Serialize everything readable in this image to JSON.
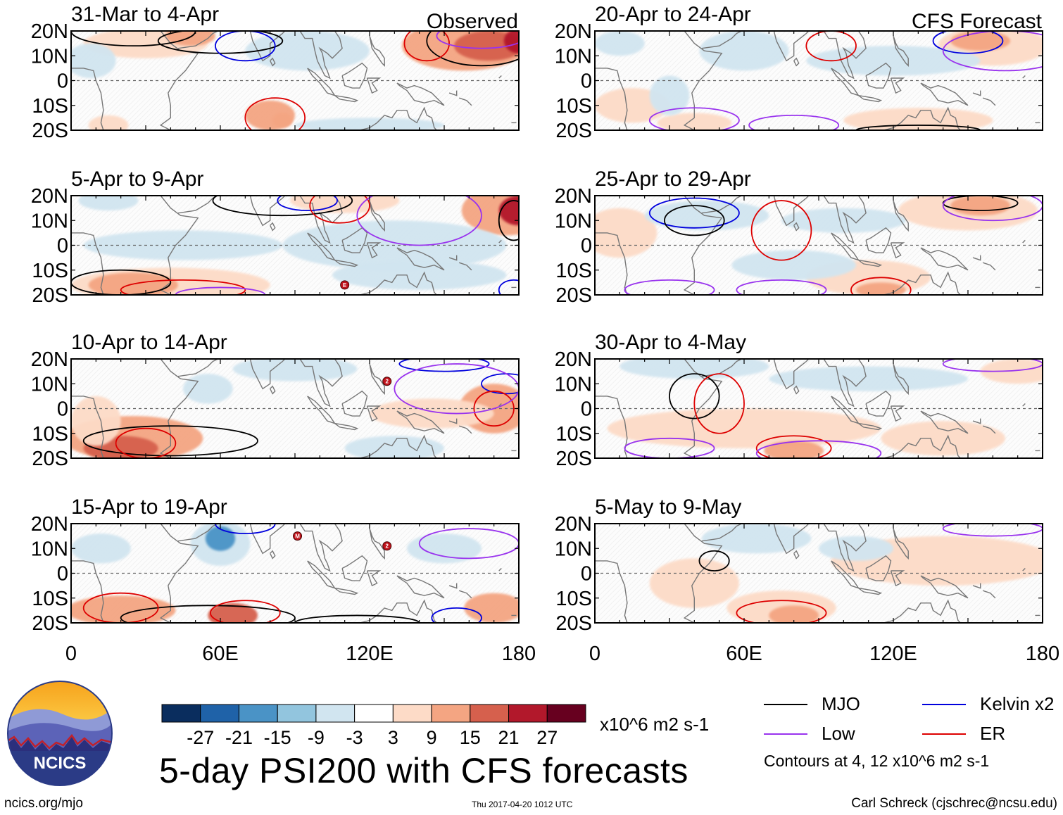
{
  "observed_label": "Observed",
  "forecast_label": "CFS Forecast",
  "lat_labels": [
    "20N",
    "10N",
    "0",
    "10S",
    "20S"
  ],
  "lon_labels": [
    "0",
    "60E",
    "120E",
    "180"
  ],
  "colors": {
    "MJO": "#000000",
    "Kelvin": "#0000dd",
    "Low": "#9933ee",
    "ER": "#dd0000",
    "land": "#777777"
  },
  "chart_data": {
    "type": "heatmap",
    "title": "5-day PSI200 with CFS forecasts",
    "units": "x10^6 m2 s-1",
    "xlim": [
      0,
      180
    ],
    "ylim": [
      -20,
      20
    ],
    "colorbar": {
      "ticks": [
        "-27",
        "-21",
        "-15",
        "-9",
        "-3",
        "3",
        "9",
        "15",
        "21",
        "27"
      ],
      "colors": [
        "#0a2d5e",
        "#1f62a8",
        "#4a93c6",
        "#92c5de",
        "#d1e5f0",
        "#ffffff",
        "#fddbc7",
        "#f4a582",
        "#d6604d",
        "#b2182b",
        "#67001f"
      ]
    },
    "panels": [
      {
        "id": "p1",
        "title": "31-Mar to 4-Apr",
        "kind": "observed",
        "blobs": [
          {
            "lon": 30,
            "lat": 15,
            "rx": 25,
            "ry": 6,
            "v": 8
          },
          {
            "lon": 48,
            "lat": 18,
            "rx": 10,
            "ry": 4,
            "v": 14
          },
          {
            "lon": 158,
            "lat": 14,
            "rx": 25,
            "ry": 10,
            "v": 9
          },
          {
            "lon": 168,
            "lat": 14,
            "rx": 14,
            "ry": 6,
            "v": 16
          },
          {
            "lon": 180,
            "lat": 16,
            "rx": 6,
            "ry": 5,
            "v": 22
          },
          {
            "lon": 80,
            "lat": -14,
            "rx": 10,
            "ry": 6,
            "v": 9
          },
          {
            "lon": 85,
            "lat": -16,
            "rx": 4,
            "ry": 3,
            "v": 14
          },
          {
            "lon": 15,
            "lat": -18,
            "rx": 8,
            "ry": 4,
            "v": 5
          },
          {
            "lon": 95,
            "lat": 12,
            "rx": 25,
            "ry": 8,
            "v": -4
          },
          {
            "lon": 8,
            "lat": 8,
            "rx": 10,
            "ry": 7,
            "v": -5
          },
          {
            "lon": 120,
            "lat": -18,
            "rx": 30,
            "ry": 3,
            "v": -4
          }
        ],
        "contours": [
          {
            "kind": "MJO",
            "lon": 25,
            "lat": 20,
            "rx": 25,
            "ry": 6
          },
          {
            "kind": "MJO",
            "lon": 60,
            "lat": 16,
            "rx": 25,
            "ry": 5
          },
          {
            "kind": "MJO",
            "lon": 165,
            "lat": 16,
            "rx": 22,
            "ry": 10
          },
          {
            "kind": "Kelvin",
            "lon": 70,
            "lat": 14,
            "rx": 12,
            "ry": 6
          },
          {
            "kind": "ER",
            "lon": 82,
            "lat": -15,
            "rx": 12,
            "ry": 8
          },
          {
            "kind": "ER",
            "lon": 143,
            "lat": 15,
            "rx": 9,
            "ry": 7
          },
          {
            "kind": "Low",
            "lon": 165,
            "lat": 18,
            "rx": 18,
            "ry": 5
          }
        ]
      },
      {
        "id": "p2",
        "title": "5-Apr to 9-Apr",
        "kind": "observed",
        "blobs": [
          {
            "lon": 40,
            "lat": -16,
            "rx": 40,
            "ry": 7,
            "v": 8
          },
          {
            "lon": 25,
            "lat": -16,
            "rx": 18,
            "ry": 5,
            "v": 14
          },
          {
            "lon": 175,
            "lat": 14,
            "rx": 18,
            "ry": 10,
            "v": 10
          },
          {
            "lon": 180,
            "lat": 14,
            "rx": 8,
            "ry": 6,
            "v": 22
          },
          {
            "lon": 110,
            "lat": 18,
            "rx": 22,
            "ry": 5,
            "v": 6
          },
          {
            "lon": 45,
            "lat": 0,
            "rx": 40,
            "ry": 6,
            "v": -5
          },
          {
            "lon": 130,
            "lat": 0,
            "rx": 45,
            "ry": 10,
            "v": -4
          },
          {
            "lon": 140,
            "lat": -12,
            "rx": 35,
            "ry": 6,
            "v": -4
          },
          {
            "lon": 15,
            "lat": 18,
            "rx": 12,
            "ry": 4,
            "v": -9
          }
        ],
        "contours": [
          {
            "kind": "MJO",
            "lon": 20,
            "lat": -15,
            "rx": 20,
            "ry": 5
          },
          {
            "kind": "MJO",
            "lon": 85,
            "lat": 18,
            "rx": 28,
            "ry": 6
          },
          {
            "kind": "MJO",
            "lon": 178,
            "lat": 10,
            "rx": 6,
            "ry": 8
          },
          {
            "kind": "Kelvin",
            "lon": 95,
            "lat": 18,
            "rx": 12,
            "ry": 4
          },
          {
            "kind": "Kelvin",
            "lon": 178,
            "lat": -18,
            "rx": 6,
            "ry": 4
          },
          {
            "kind": "ER",
            "lon": 108,
            "lat": 16,
            "rx": 12,
            "ry": 7
          },
          {
            "kind": "ER",
            "lon": 45,
            "lat": -18,
            "rx": 25,
            "ry": 4
          },
          {
            "kind": "Low",
            "lon": 140,
            "lat": 12,
            "rx": 25,
            "ry": 12
          },
          {
            "kind": "Low",
            "lon": 60,
            "lat": -20,
            "rx": 18,
            "ry": 3
          }
        ],
        "markers": [
          {
            "lon": 110,
            "lat": -16,
            "label": "E"
          }
        ]
      },
      {
        "id": "p3",
        "title": "10-Apr to 14-Apr",
        "kind": "observed",
        "blobs": [
          {
            "lon": 25,
            "lat": -12,
            "rx": 28,
            "ry": 9,
            "v": 9
          },
          {
            "lon": 20,
            "lat": -16,
            "rx": 15,
            "ry": 5,
            "v": 18
          },
          {
            "lon": 10,
            "lat": -5,
            "rx": 10,
            "ry": 10,
            "v": 6
          },
          {
            "lon": 170,
            "lat": 0,
            "rx": 14,
            "ry": 10,
            "v": 9
          },
          {
            "lon": 145,
            "lat": -2,
            "rx": 25,
            "ry": 6,
            "v": 4
          },
          {
            "lon": 55,
            "lat": 8,
            "rx": 10,
            "ry": 6,
            "v": -6
          },
          {
            "lon": 130,
            "lat": -16,
            "rx": 20,
            "ry": 5,
            "v": -5
          },
          {
            "lon": 90,
            "lat": 16,
            "rx": 25,
            "ry": 5,
            "v": -4
          }
        ],
        "contours": [
          {
            "kind": "MJO",
            "lon": 40,
            "lat": -13,
            "rx": 35,
            "ry": 6
          },
          {
            "kind": "Kelvin",
            "lon": 150,
            "lat": 18,
            "rx": 18,
            "ry": 3
          },
          {
            "kind": "Kelvin",
            "lon": 175,
            "lat": 10,
            "rx": 10,
            "ry": 4
          },
          {
            "kind": "ER",
            "lon": 30,
            "lat": -14,
            "rx": 12,
            "ry": 6
          },
          {
            "kind": "ER",
            "lon": 170,
            "lat": 0,
            "rx": 8,
            "ry": 7
          },
          {
            "kind": "Low",
            "lon": 155,
            "lat": 8,
            "rx": 25,
            "ry": 10
          }
        ],
        "markers": [
          {
            "lon": 127,
            "lat": 11,
            "label": "2"
          }
        ]
      },
      {
        "id": "p4",
        "title": "15-Apr to 19-Apr",
        "kind": "observed",
        "blobs": [
          {
            "lon": 20,
            "lat": -15,
            "rx": 22,
            "ry": 6,
            "v": 9
          },
          {
            "lon": 65,
            "lat": -17,
            "rx": 10,
            "ry": 5,
            "v": 15
          },
          {
            "lon": 170,
            "lat": -14,
            "rx": 12,
            "ry": 6,
            "v": 9
          },
          {
            "lon": 60,
            "lat": 12,
            "rx": 12,
            "ry": 9,
            "v": -9
          },
          {
            "lon": 60,
            "lat": 14,
            "rx": 6,
            "ry": 5,
            "v": -16
          },
          {
            "lon": 150,
            "lat": 10,
            "rx": 15,
            "ry": 6,
            "v": -6
          },
          {
            "lon": 12,
            "lat": 10,
            "rx": 12,
            "ry": 6,
            "v": -6
          }
        ],
        "contours": [
          {
            "kind": "MJO",
            "lon": 55,
            "lat": -18,
            "rx": 35,
            "ry": 5
          },
          {
            "kind": "MJO",
            "lon": 115,
            "lat": -20,
            "rx": 25,
            "ry": 3
          },
          {
            "kind": "ER",
            "lon": 20,
            "lat": -14,
            "rx": 15,
            "ry": 6
          },
          {
            "kind": "ER",
            "lon": 70,
            "lat": -16,
            "rx": 14,
            "ry": 5
          },
          {
            "kind": "Kelvin",
            "lon": 70,
            "lat": 20,
            "rx": 12,
            "ry": 4
          },
          {
            "kind": "Kelvin",
            "lon": 155,
            "lat": -18,
            "rx": 10,
            "ry": 4
          },
          {
            "kind": "Low",
            "lon": 160,
            "lat": 12,
            "rx": 20,
            "ry": 6
          }
        ],
        "markers": [
          {
            "lon": 91,
            "lat": 15,
            "label": "M"
          },
          {
            "lon": 127,
            "lat": 11,
            "label": "2"
          }
        ]
      },
      {
        "id": "p5",
        "title": "20-Apr to 24-Apr",
        "kind": "forecast",
        "blobs": [
          {
            "lon": 160,
            "lat": 14,
            "rx": 22,
            "ry": 8,
            "v": 8
          },
          {
            "lon": 155,
            "lat": 16,
            "rx": 12,
            "ry": 4,
            "v": 14
          },
          {
            "lon": 15,
            "lat": -10,
            "rx": 15,
            "ry": 7,
            "v": 6
          },
          {
            "lon": 130,
            "lat": -16,
            "rx": 30,
            "ry": 5,
            "v": 5
          },
          {
            "lon": 40,
            "lat": -17,
            "rx": 15,
            "ry": 4,
            "v": 7
          },
          {
            "lon": 60,
            "lat": 12,
            "rx": 18,
            "ry": 8,
            "v": -5
          },
          {
            "lon": 30,
            "lat": -6,
            "rx": 8,
            "ry": 8,
            "v": -6
          },
          {
            "lon": 120,
            "lat": 8,
            "rx": 35,
            "ry": 6,
            "v": -4
          },
          {
            "lon": 10,
            "lat": 15,
            "rx": 10,
            "ry": 5,
            "v": -6
          }
        ],
        "contours": [
          {
            "kind": "Kelvin",
            "lon": 150,
            "lat": 16,
            "rx": 14,
            "ry": 5
          },
          {
            "kind": "Low",
            "lon": 165,
            "lat": 12,
            "rx": 25,
            "ry": 8
          },
          {
            "kind": "Low",
            "lon": 40,
            "lat": -16,
            "rx": 18,
            "ry": 5
          },
          {
            "kind": "Low",
            "lon": 80,
            "lat": -18,
            "rx": 18,
            "ry": 4
          },
          {
            "kind": "MJO",
            "lon": 130,
            "lat": -20,
            "rx": 25,
            "ry": 2
          },
          {
            "kind": "ER",
            "lon": 95,
            "lat": 14,
            "rx": 10,
            "ry": 6
          }
        ]
      },
      {
        "id": "p6",
        "title": "25-Apr to 29-Apr",
        "kind": "forecast",
        "blobs": [
          {
            "lon": 150,
            "lat": 14,
            "rx": 28,
            "ry": 8,
            "v": 8
          },
          {
            "lon": 155,
            "lat": 16,
            "rx": 12,
            "ry": 4,
            "v": 14
          },
          {
            "lon": 110,
            "lat": -13,
            "rx": 25,
            "ry": 7,
            "v": 6
          },
          {
            "lon": 115,
            "lat": -18,
            "rx": 10,
            "ry": 3,
            "v": 12
          },
          {
            "lon": 10,
            "lat": 5,
            "rx": 15,
            "ry": 10,
            "v": 5
          },
          {
            "lon": 45,
            "lat": 12,
            "rx": 25,
            "ry": 6,
            "v": -4
          },
          {
            "lon": 80,
            "lat": -8,
            "rx": 25,
            "ry": 6,
            "v": -5
          },
          {
            "lon": 100,
            "lat": 10,
            "rx": 25,
            "ry": 5,
            "v": -4
          }
        ],
        "contours": [
          {
            "kind": "Kelvin",
            "lon": 40,
            "lat": 13,
            "rx": 18,
            "ry": 6
          },
          {
            "kind": "MJO",
            "lon": 40,
            "lat": 10,
            "rx": 12,
            "ry": 6
          },
          {
            "kind": "MJO",
            "lon": 155,
            "lat": 17,
            "rx": 15,
            "ry": 3
          },
          {
            "kind": "ER",
            "lon": 75,
            "lat": 6,
            "rx": 12,
            "ry": 12
          },
          {
            "kind": "ER",
            "lon": 115,
            "lat": -18,
            "rx": 12,
            "ry": 5
          },
          {
            "kind": "Low",
            "lon": 30,
            "lat": -18,
            "rx": 18,
            "ry": 4
          },
          {
            "kind": "Low",
            "lon": 75,
            "lat": -18,
            "rx": 18,
            "ry": 4
          },
          {
            "kind": "Low",
            "lon": 160,
            "lat": 16,
            "rx": 20,
            "ry": 6
          }
        ]
      },
      {
        "id": "p7",
        "title": "30-Apr to 4-May",
        "kind": "forecast",
        "blobs": [
          {
            "lon": 60,
            "lat": -8,
            "rx": 55,
            "ry": 8,
            "v": 5
          },
          {
            "lon": 80,
            "lat": -17,
            "rx": 12,
            "ry": 4,
            "v": 10
          },
          {
            "lon": 140,
            "lat": -12,
            "rx": 25,
            "ry": 7,
            "v": 5
          },
          {
            "lon": 170,
            "lat": 15,
            "rx": 15,
            "ry": 5,
            "v": 4
          },
          {
            "lon": 40,
            "lat": 17,
            "rx": 30,
            "ry": 5,
            "v": -5
          },
          {
            "lon": 110,
            "lat": 12,
            "rx": 40,
            "ry": 5,
            "v": -4
          }
        ],
        "contours": [
          {
            "kind": "MJO",
            "lon": 40,
            "lat": 5,
            "rx": 10,
            "ry": 9
          },
          {
            "kind": "ER",
            "lon": 50,
            "lat": 2,
            "rx": 10,
            "ry": 12
          },
          {
            "kind": "ER",
            "lon": 80,
            "lat": -16,
            "rx": 15,
            "ry": 5
          },
          {
            "kind": "Low",
            "lon": 30,
            "lat": -16,
            "rx": 18,
            "ry": 4
          },
          {
            "kind": "Low",
            "lon": 90,
            "lat": -18,
            "rx": 25,
            "ry": 5
          },
          {
            "kind": "Low",
            "lon": 160,
            "lat": 18,
            "rx": 20,
            "ry": 3
          }
        ]
      },
      {
        "id": "p8",
        "title": "5-May to 9-May",
        "kind": "forecast",
        "blobs": [
          {
            "lon": 140,
            "lat": 5,
            "rx": 45,
            "ry": 10,
            "v": 5
          },
          {
            "lon": 75,
            "lat": -14,
            "rx": 22,
            "ry": 7,
            "v": 6
          },
          {
            "lon": 80,
            "lat": -17,
            "rx": 10,
            "ry": 4,
            "v": 12
          },
          {
            "lon": 40,
            "lat": -4,
            "rx": 18,
            "ry": 10,
            "v": 5
          },
          {
            "lon": 65,
            "lat": 14,
            "rx": 22,
            "ry": 6,
            "v": -6
          },
          {
            "lon": 105,
            "lat": 10,
            "rx": 15,
            "ry": 5,
            "v": -4
          }
        ],
        "contours": [
          {
            "kind": "MJO",
            "lon": 48,
            "lat": 5,
            "rx": 6,
            "ry": 4
          },
          {
            "kind": "ER",
            "lon": 75,
            "lat": -16,
            "rx": 18,
            "ry": 5
          },
          {
            "kind": "Low",
            "lon": 160,
            "lat": 18,
            "rx": 20,
            "ry": 3
          }
        ]
      }
    ]
  },
  "legend": {
    "mjo": "MJO",
    "kelvin": "Kelvin x2",
    "low": "Low",
    "er": "ER",
    "contour_note": "Contours at 4, 12 x10^6 m2 s-1"
  },
  "logo_text": "NCICS",
  "footer": {
    "left": "ncics.org/mjo",
    "center": "Thu 2017-04-20 1012 UTC",
    "right": "Carl Schreck (cjschrec@ncsu.edu)"
  }
}
